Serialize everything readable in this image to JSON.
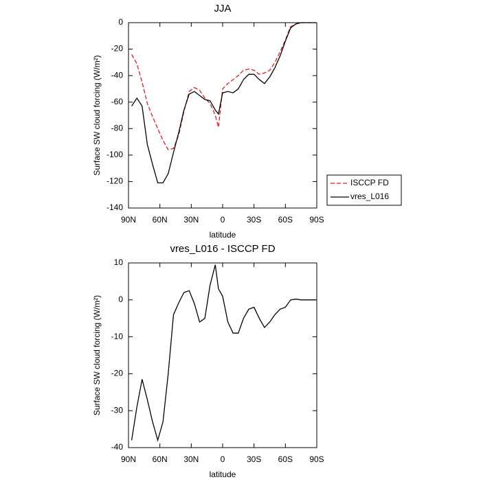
{
  "chart_data": [
    {
      "type": "line",
      "title": "JJA",
      "x_label": "latitude",
      "y_label": "Surface SW cloud forcing (W/m²)",
      "x": [
        87,
        82,
        77,
        72,
        67,
        62,
        57,
        52,
        47,
        42,
        37,
        32,
        27,
        22,
        17,
        12,
        7,
        4,
        0,
        -5,
        -10,
        -15,
        -20,
        -25,
        -30,
        -35,
        -40,
        -45,
        -50,
        -55,
        -60,
        -65,
        -70,
        -75,
        -80,
        -85,
        -89
      ],
      "series": [
        {
          "name": "ISCCP FD",
          "color": "#e41a1c",
          "dashed": true,
          "values": [
            -24,
            -31,
            -45,
            -61,
            -71,
            -80,
            -89,
            -96,
            -95,
            -85,
            -67,
            -52,
            -49,
            -51,
            -57,
            -61,
            -70,
            -79,
            -50,
            -46,
            -43,
            -40,
            -36,
            -35,
            -36,
            -39,
            -38,
            -36,
            -30,
            -22,
            -13,
            -3,
            -1,
            0,
            0,
            0,
            0
          ]
        },
        {
          "name": "vres_L016",
          "color": "#000000",
          "dashed": false,
          "values": [
            -63,
            -57,
            -63,
            -92,
            -107,
            -121,
            -121,
            -114,
            -98,
            -83,
            -66,
            -54,
            -52,
            -55,
            -58,
            -59,
            -66,
            -69,
            -53,
            -52,
            -53,
            -50,
            -43,
            -39,
            -39,
            -43,
            -46,
            -41,
            -34,
            -25,
            -14,
            -4,
            -1,
            0,
            0,
            0,
            0
          ]
        }
      ],
      "xlim": [
        90,
        -90
      ],
      "xticks": [
        {
          "value": 90,
          "label": "90N"
        },
        {
          "value": 60,
          "label": "60N"
        },
        {
          "value": 30,
          "label": "30N"
        },
        0,
        {
          "value": -30,
          "label": "30S"
        },
        {
          "value": -60,
          "label": "60S"
        },
        {
          "value": -90,
          "label": "90S"
        }
      ],
      "ylim": [
        -140,
        0
      ],
      "yticks": [
        0,
        -20,
        -40,
        -60,
        -80,
        -100,
        -120,
        -140
      ],
      "legend": "right"
    },
    {
      "type": "line",
      "title": "vres_L016 - ISCCP FD",
      "x_label": "latitude",
      "y_label": "Surface SW cloud forcing (W/m²)",
      "x": [
        87,
        82,
        77,
        72,
        67,
        62,
        57,
        52,
        47,
        42,
        37,
        32,
        27,
        22,
        17,
        12,
        7,
        4,
        0,
        -5,
        -10,
        -15,
        -20,
        -25,
        -30,
        -35,
        -40,
        -45,
        -50,
        -55,
        -60,
        -65,
        -70,
        -75,
        -80,
        -85,
        -89
      ],
      "color": "#000000",
      "values": [
        -38,
        -29,
        -21.5,
        -27,
        -33,
        -38,
        -33,
        -20,
        -4,
        -0.8,
        2,
        2.5,
        -1,
        -6,
        -5,
        4,
        9.5,
        3,
        1,
        -6,
        -9,
        -9,
        -5,
        -2.5,
        -2,
        -5,
        -7.5,
        -6,
        -4,
        -2.5,
        -2,
        0,
        0.2,
        0,
        0,
        0,
        0
      ],
      "xlim": [
        90,
        -90
      ],
      "xticks": [
        {
          "value": 90,
          "label": "90N"
        },
        {
          "value": 60,
          "label": "60N"
        },
        {
          "value": 30,
          "label": "30N"
        },
        0,
        {
          "value": -30,
          "label": "30S"
        },
        {
          "value": -60,
          "label": "60S"
        },
        {
          "value": -90,
          "label": "90S"
        }
      ],
      "ylim": [
        -40,
        10
      ],
      "yticks": [
        10,
        0,
        -10,
        -20,
        -30,
        -40
      ]
    }
  ]
}
